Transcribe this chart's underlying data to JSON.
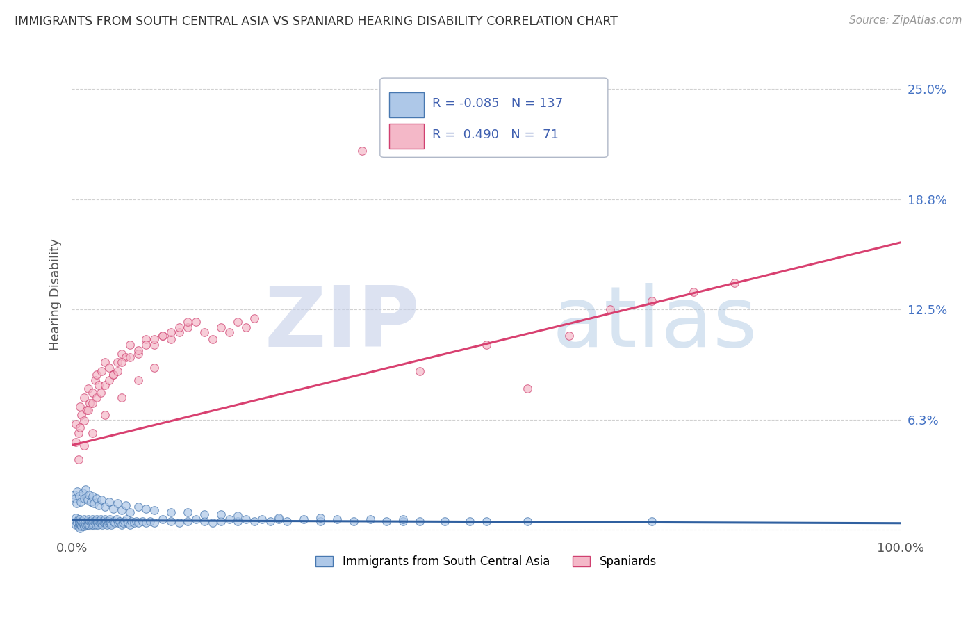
{
  "title": "IMMIGRANTS FROM SOUTH CENTRAL ASIA VS SPANIARD HEARING DISABILITY CORRELATION CHART",
  "source": "Source: ZipAtlas.com",
  "ylabel": "Hearing Disability",
  "xlim": [
    0.0,
    1.0
  ],
  "ylim": [
    -0.003,
    0.27
  ],
  "yticks": [
    0.0,
    0.0625,
    0.125,
    0.1875,
    0.25
  ],
  "ytick_labels": [
    "",
    "6.3%",
    "12.5%",
    "18.8%",
    "25.0%"
  ],
  "xtick_labels": [
    "0.0%",
    "100.0%"
  ],
  "blue_R": -0.085,
  "blue_N": 137,
  "pink_R": 0.49,
  "pink_N": 71,
  "blue_color": "#aec8e8",
  "pink_color": "#f4b8c8",
  "blue_edge_color": "#4878b0",
  "pink_edge_color": "#d04070",
  "blue_line_color": "#3060a0",
  "pink_line_color": "#d84070",
  "legend_label_blue": "Immigrants from South Central Asia",
  "legend_label_pink": "Spaniards",
  "watermark_zip": "ZIP",
  "watermark_atlas": "atlas",
  "background_color": "#ffffff",
  "grid_color": "#cccccc",
  "blue_scatter_x": [
    0.005,
    0.005,
    0.005,
    0.007,
    0.008,
    0.008,
    0.009,
    0.009,
    0.01,
    0.01,
    0.01,
    0.011,
    0.012,
    0.012,
    0.013,
    0.014,
    0.015,
    0.015,
    0.016,
    0.017,
    0.018,
    0.019,
    0.02,
    0.02,
    0.021,
    0.022,
    0.023,
    0.024,
    0.025,
    0.025,
    0.026,
    0.027,
    0.028,
    0.029,
    0.03,
    0.03,
    0.031,
    0.032,
    0.033,
    0.034,
    0.035,
    0.036,
    0.037,
    0.038,
    0.039,
    0.04,
    0.041,
    0.042,
    0.043,
    0.044,
    0.045,
    0.046,
    0.047,
    0.048,
    0.05,
    0.052,
    0.054,
    0.056,
    0.058,
    0.06,
    0.062,
    0.064,
    0.066,
    0.068,
    0.07,
    0.072,
    0.075,
    0.078,
    0.08,
    0.085,
    0.09,
    0.095,
    0.1,
    0.11,
    0.12,
    0.13,
    0.14,
    0.15,
    0.16,
    0.17,
    0.18,
    0.19,
    0.2,
    0.21,
    0.22,
    0.23,
    0.24,
    0.25,
    0.26,
    0.28,
    0.3,
    0.32,
    0.34,
    0.36,
    0.38,
    0.4,
    0.42,
    0.45,
    0.48,
    0.5,
    0.003,
    0.004,
    0.006,
    0.007,
    0.009,
    0.011,
    0.013,
    0.015,
    0.017,
    0.019,
    0.021,
    0.023,
    0.025,
    0.027,
    0.03,
    0.033,
    0.036,
    0.04,
    0.045,
    0.05,
    0.055,
    0.06,
    0.065,
    0.07,
    0.08,
    0.09,
    0.1,
    0.12,
    0.14,
    0.16,
    0.18,
    0.2,
    0.25,
    0.3,
    0.4,
    0.55,
    0.7
  ],
  "blue_scatter_y": [
    0.005,
    0.003,
    0.007,
    0.004,
    0.002,
    0.006,
    0.003,
    0.005,
    0.001,
    0.004,
    0.006,
    0.003,
    0.005,
    0.002,
    0.004,
    0.003,
    0.006,
    0.002,
    0.004,
    0.003,
    0.005,
    0.003,
    0.004,
    0.006,
    0.003,
    0.005,
    0.004,
    0.003,
    0.006,
    0.004,
    0.003,
    0.005,
    0.004,
    0.003,
    0.005,
    0.006,
    0.004,
    0.003,
    0.005,
    0.004,
    0.006,
    0.004,
    0.003,
    0.005,
    0.004,
    0.006,
    0.004,
    0.005,
    0.003,
    0.004,
    0.005,
    0.006,
    0.004,
    0.003,
    0.005,
    0.004,
    0.006,
    0.004,
    0.005,
    0.003,
    0.004,
    0.005,
    0.006,
    0.004,
    0.003,
    0.005,
    0.004,
    0.005,
    0.004,
    0.005,
    0.004,
    0.005,
    0.004,
    0.006,
    0.005,
    0.004,
    0.005,
    0.006,
    0.005,
    0.004,
    0.005,
    0.006,
    0.005,
    0.006,
    0.005,
    0.006,
    0.005,
    0.006,
    0.005,
    0.006,
    0.005,
    0.006,
    0.005,
    0.006,
    0.005,
    0.005,
    0.005,
    0.005,
    0.005,
    0.005,
    0.02,
    0.018,
    0.015,
    0.022,
    0.019,
    0.016,
    0.021,
    0.018,
    0.023,
    0.017,
    0.02,
    0.016,
    0.019,
    0.015,
    0.018,
    0.014,
    0.017,
    0.013,
    0.016,
    0.012,
    0.015,
    0.011,
    0.014,
    0.01,
    0.013,
    0.012,
    0.011,
    0.01,
    0.01,
    0.009,
    0.009,
    0.008,
    0.007,
    0.007,
    0.006,
    0.005,
    0.005
  ],
  "pink_scatter_x": [
    0.005,
    0.008,
    0.01,
    0.012,
    0.015,
    0.018,
    0.02,
    0.022,
    0.025,
    0.028,
    0.03,
    0.033,
    0.036,
    0.04,
    0.045,
    0.05,
    0.055,
    0.06,
    0.065,
    0.07,
    0.08,
    0.09,
    0.1,
    0.11,
    0.12,
    0.13,
    0.14,
    0.15,
    0.16,
    0.17,
    0.18,
    0.19,
    0.2,
    0.21,
    0.22,
    0.005,
    0.01,
    0.015,
    0.02,
    0.025,
    0.03,
    0.035,
    0.04,
    0.045,
    0.05,
    0.055,
    0.06,
    0.07,
    0.08,
    0.09,
    0.1,
    0.11,
    0.12,
    0.13,
    0.14,
    0.008,
    0.015,
    0.025,
    0.04,
    0.06,
    0.08,
    0.1,
    0.5,
    0.6,
    0.65,
    0.7,
    0.75,
    0.8,
    0.55,
    0.42,
    0.35
  ],
  "pink_scatter_y": [
    0.06,
    0.055,
    0.07,
    0.065,
    0.075,
    0.068,
    0.08,
    0.072,
    0.078,
    0.085,
    0.088,
    0.082,
    0.09,
    0.095,
    0.092,
    0.088,
    0.095,
    0.1,
    0.098,
    0.105,
    0.1,
    0.108,
    0.105,
    0.11,
    0.108,
    0.112,
    0.115,
    0.118,
    0.112,
    0.108,
    0.115,
    0.112,
    0.118,
    0.115,
    0.12,
    0.05,
    0.058,
    0.062,
    0.068,
    0.072,
    0.075,
    0.078,
    0.082,
    0.085,
    0.088,
    0.09,
    0.095,
    0.098,
    0.102,
    0.105,
    0.108,
    0.11,
    0.112,
    0.115,
    0.118,
    0.04,
    0.048,
    0.055,
    0.065,
    0.075,
    0.085,
    0.092,
    0.105,
    0.11,
    0.125,
    0.13,
    0.135,
    0.14,
    0.08,
    0.09,
    0.215
  ],
  "blue_trendline_x": [
    0.0,
    1.0
  ],
  "blue_trendline_y": [
    0.0055,
    0.0038
  ],
  "pink_trendline_x": [
    0.0,
    1.0
  ],
  "pink_trendline_y": [
    0.048,
    0.163
  ]
}
